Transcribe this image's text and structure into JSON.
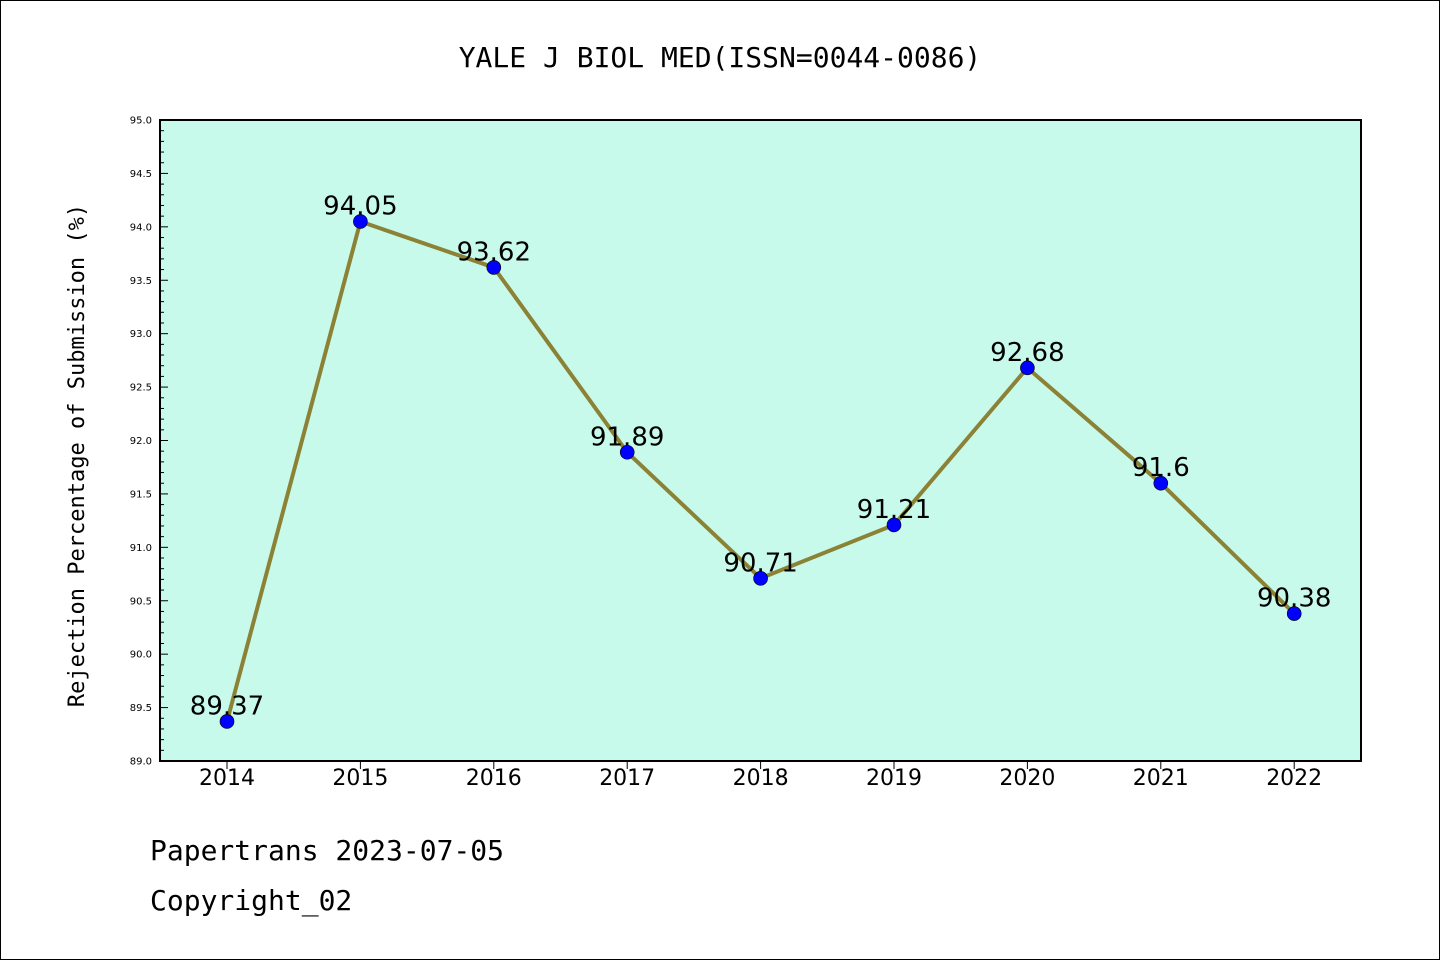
{
  "chart_data": {
    "type": "line",
    "title": "YALE J BIOL MED(ISSN=0044-0086)",
    "xlabel": "",
    "ylabel": "Rejection Percentage of Submission (%)",
    "categories": [
      "2014",
      "2015",
      "2016",
      "2017",
      "2018",
      "2019",
      "2020",
      "2021",
      "2022"
    ],
    "values": [
      89.37,
      94.05,
      93.62,
      91.89,
      90.71,
      91.21,
      92.68,
      91.6,
      90.38
    ],
    "data_labels": [
      "89.37",
      "94.05",
      "93.62",
      "91.89",
      "90.71",
      "91.21",
      "92.68",
      "91.6",
      "90.38"
    ],
    "ylim": [
      89.0,
      95.0
    ],
    "yticks": [
      89.0,
      89.5,
      90.0,
      90.5,
      91.0,
      91.5,
      92.0,
      92.5,
      93.0,
      93.5,
      94.0,
      94.5,
      95.0
    ],
    "ytick_labels": [
      "89.0",
      "89.5",
      "90.0",
      "90.5",
      "91.0",
      "91.5",
      "92.0",
      "92.5",
      "93.0",
      "93.5",
      "94.0",
      "94.5",
      "95.0"
    ],
    "grid": false,
    "colors": {
      "plot_background": "#c8faec",
      "line": "#8b8236",
      "marker": "#0000ff"
    }
  },
  "footer": {
    "line1": "Papertrans 2023-07-05",
    "line2": "Copyright_02"
  }
}
